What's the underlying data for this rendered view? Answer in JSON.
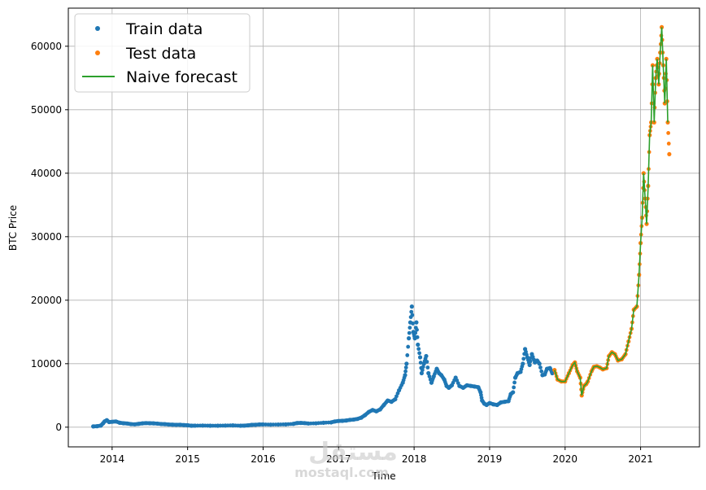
{
  "chart_data": {
    "type": "scatter",
    "xlabel": "Time",
    "ylabel": "BTC Price",
    "xlim": [
      2013.42,
      2021.78
    ],
    "ylim": [
      -3100,
      66000
    ],
    "xticks": [
      2014,
      2015,
      2016,
      2017,
      2018,
      2019,
      2020,
      2021
    ],
    "yticks": [
      0,
      10000,
      20000,
      30000,
      40000,
      50000,
      60000
    ],
    "grid": true,
    "legend_position": "top-left",
    "series": [
      {
        "name": "Train data",
        "kind": "points",
        "color": "#1f77b4",
        "points": [
          [
            2013.75,
            120
          ],
          [
            2013.8,
            150
          ],
          [
            2013.85,
            250
          ],
          [
            2013.88,
            600
          ],
          [
            2013.9,
            900
          ],
          [
            2013.93,
            1100
          ],
          [
            2013.96,
            800
          ],
          [
            2014.0,
            850
          ],
          [
            2014.05,
            900
          ],
          [
            2014.1,
            700
          ],
          [
            2014.15,
            620
          ],
          [
            2014.2,
            580
          ],
          [
            2014.25,
            480
          ],
          [
            2014.3,
            450
          ],
          [
            2014.35,
            520
          ],
          [
            2014.4,
            600
          ],
          [
            2014.45,
            640
          ],
          [
            2014.5,
            620
          ],
          [
            2014.55,
            600
          ],
          [
            2014.6,
            560
          ],
          [
            2014.65,
            500
          ],
          [
            2014.7,
            470
          ],
          [
            2014.75,
            420
          ],
          [
            2014.8,
            390
          ],
          [
            2014.85,
            370
          ],
          [
            2014.9,
            380
          ],
          [
            2014.95,
            330
          ],
          [
            2015.0,
            300
          ],
          [
            2015.05,
            230
          ],
          [
            2015.1,
            240
          ],
          [
            2015.2,
            260
          ],
          [
            2015.3,
            235
          ],
          [
            2015.4,
            230
          ],
          [
            2015.5,
            260
          ],
          [
            2015.6,
            280
          ],
          [
            2015.7,
            235
          ],
          [
            2015.75,
            240
          ],
          [
            2015.8,
            290
          ],
          [
            2015.85,
            360
          ],
          [
            2015.9,
            380
          ],
          [
            2015.95,
            430
          ],
          [
            2016.0,
            430
          ],
          [
            2016.1,
            400
          ],
          [
            2016.2,
            420
          ],
          [
            2016.3,
            440
          ],
          [
            2016.4,
            520
          ],
          [
            2016.45,
            650
          ],
          [
            2016.5,
            670
          ],
          [
            2016.55,
            640
          ],
          [
            2016.6,
            580
          ],
          [
            2016.7,
            610
          ],
          [
            2016.8,
            700
          ],
          [
            2016.9,
            750
          ],
          [
            2016.95,
            900
          ],
          [
            2017.0,
            980
          ],
          [
            2017.05,
            1000
          ],
          [
            2017.1,
            1050
          ],
          [
            2017.15,
            1150
          ],
          [
            2017.2,
            1200
          ],
          [
            2017.25,
            1300
          ],
          [
            2017.3,
            1500
          ],
          [
            2017.35,
            1900
          ],
          [
            2017.4,
            2400
          ],
          [
            2017.45,
            2700
          ],
          [
            2017.5,
            2500
          ],
          [
            2017.55,
            2800
          ],
          [
            2017.6,
            3500
          ],
          [
            2017.65,
            4200
          ],
          [
            2017.7,
            4000
          ],
          [
            2017.75,
            4400
          ],
          [
            2017.8,
            5800
          ],
          [
            2017.85,
            7000
          ],
          [
            2017.88,
            8200
          ],
          [
            2017.9,
            10000
          ],
          [
            2017.93,
            14000
          ],
          [
            2017.95,
            16500
          ],
          [
            2017.97,
            19000
          ],
          [
            2017.99,
            15000
          ],
          [
            2018.01,
            14000
          ],
          [
            2018.03,
            16500
          ],
          [
            2018.05,
            13000
          ],
          [
            2018.08,
            11000
          ],
          [
            2018.1,
            8500
          ],
          [
            2018.13,
            10000
          ],
          [
            2018.16,
            11200
          ],
          [
            2018.19,
            8500
          ],
          [
            2018.23,
            7000
          ],
          [
            2018.26,
            8000
          ],
          [
            2018.3,
            9200
          ],
          [
            2018.33,
            8500
          ],
          [
            2018.36,
            8200
          ],
          [
            2018.4,
            7500
          ],
          [
            2018.43,
            6500
          ],
          [
            2018.46,
            6200
          ],
          [
            2018.5,
            6600
          ],
          [
            2018.55,
            7800
          ],
          [
            2018.6,
            6500
          ],
          [
            2018.65,
            6200
          ],
          [
            2018.7,
            6600
          ],
          [
            2018.75,
            6500
          ],
          [
            2018.8,
            6400
          ],
          [
            2018.85,
            6300
          ],
          [
            2018.88,
            5500
          ],
          [
            2018.9,
            4200
          ],
          [
            2018.93,
            3700
          ],
          [
            2018.96,
            3500
          ],
          [
            2019.0,
            3800
          ],
          [
            2019.05,
            3600
          ],
          [
            2019.1,
            3500
          ],
          [
            2019.15,
            3900
          ],
          [
            2019.2,
            4000
          ],
          [
            2019.25,
            4100
          ],
          [
            2019.28,
            5200
          ],
          [
            2019.31,
            5500
          ],
          [
            2019.34,
            7800
          ],
          [
            2019.37,
            8500
          ],
          [
            2019.41,
            8700
          ],
          [
            2019.44,
            10000
          ],
          [
            2019.47,
            12300
          ],
          [
            2019.5,
            11000
          ],
          [
            2019.53,
            9800
          ],
          [
            2019.56,
            11500
          ],
          [
            2019.6,
            10200
          ],
          [
            2019.63,
            10500
          ],
          [
            2019.66,
            10000
          ],
          [
            2019.7,
            8200
          ],
          [
            2019.73,
            8300
          ],
          [
            2019.76,
            9200
          ],
          [
            2019.8,
            9300
          ],
          [
            2019.83,
            8500
          ]
        ]
      },
      {
        "name": "Test data",
        "kind": "points",
        "color": "#ff7f0e",
        "points": [
          [
            2019.86,
            9000
          ],
          [
            2019.9,
            7500
          ],
          [
            2019.95,
            7200
          ],
          [
            2020.0,
            7200
          ],
          [
            2020.05,
            8500
          ],
          [
            2020.1,
            9800
          ],
          [
            2020.13,
            10200
          ],
          [
            2020.16,
            8800
          ],
          [
            2020.2,
            7800
          ],
          [
            2020.22,
            5000
          ],
          [
            2020.25,
            6500
          ],
          [
            2020.28,
            6800
          ],
          [
            2020.3,
            7200
          ],
          [
            2020.35,
            8800
          ],
          [
            2020.38,
            9500
          ],
          [
            2020.42,
            9600
          ],
          [
            2020.46,
            9400
          ],
          [
            2020.5,
            9100
          ],
          [
            2020.55,
            9300
          ],
          [
            2020.58,
            11200
          ],
          [
            2020.62,
            11800
          ],
          [
            2020.66,
            11500
          ],
          [
            2020.7,
            10500
          ],
          [
            2020.75,
            10700
          ],
          [
            2020.8,
            11500
          ],
          [
            2020.84,
            13500
          ],
          [
            2020.88,
            15500
          ],
          [
            2020.91,
            18500
          ],
          [
            2020.95,
            19000
          ],
          [
            2020.98,
            24000
          ],
          [
            2021.0,
            29000
          ],
          [
            2021.02,
            33000
          ],
          [
            2021.04,
            40000
          ],
          [
            2021.06,
            36000
          ],
          [
            2021.08,
            32000
          ],
          [
            2021.1,
            38000
          ],
          [
            2021.12,
            46000
          ],
          [
            2021.14,
            48000
          ],
          [
            2021.16,
            57000
          ],
          [
            2021.18,
            48000
          ],
          [
            2021.2,
            55000
          ],
          [
            2021.22,
            58000
          ],
          [
            2021.24,
            54000
          ],
          [
            2021.26,
            59000
          ],
          [
            2021.28,
            63000
          ],
          [
            2021.3,
            57000
          ],
          [
            2021.32,
            51000
          ],
          [
            2021.34,
            58000
          ],
          [
            2021.36,
            48000
          ],
          [
            2021.38,
            43000
          ]
        ]
      },
      {
        "name": "Naive forecast",
        "kind": "line",
        "color": "#2ca02c",
        "points": [
          [
            2019.86,
            9000
          ],
          [
            2019.9,
            7500
          ],
          [
            2019.95,
            7200
          ],
          [
            2020.0,
            7200
          ],
          [
            2020.05,
            8500
          ],
          [
            2020.1,
            9800
          ],
          [
            2020.13,
            10200
          ],
          [
            2020.16,
            8800
          ],
          [
            2020.2,
            7800
          ],
          [
            2020.22,
            5000
          ],
          [
            2020.25,
            6500
          ],
          [
            2020.28,
            6800
          ],
          [
            2020.3,
            7200
          ],
          [
            2020.35,
            8800
          ],
          [
            2020.38,
            9500
          ],
          [
            2020.42,
            9600
          ],
          [
            2020.46,
            9400
          ],
          [
            2020.5,
            9100
          ],
          [
            2020.55,
            9300
          ],
          [
            2020.58,
            11200
          ],
          [
            2020.62,
            11800
          ],
          [
            2020.66,
            11500
          ],
          [
            2020.7,
            10500
          ],
          [
            2020.75,
            10700
          ],
          [
            2020.8,
            11500
          ],
          [
            2020.84,
            13500
          ],
          [
            2020.88,
            15500
          ],
          [
            2020.91,
            18500
          ],
          [
            2020.95,
            19000
          ],
          [
            2020.98,
            24000
          ],
          [
            2021.0,
            29000
          ],
          [
            2021.02,
            33000
          ],
          [
            2021.04,
            40000
          ],
          [
            2021.06,
            36000
          ],
          [
            2021.08,
            32000
          ],
          [
            2021.1,
            38000
          ],
          [
            2021.12,
            46000
          ],
          [
            2021.14,
            48000
          ],
          [
            2021.16,
            57000
          ],
          [
            2021.18,
            48000
          ],
          [
            2021.2,
            55000
          ],
          [
            2021.22,
            58000
          ],
          [
            2021.24,
            54000
          ],
          [
            2021.26,
            59000
          ],
          [
            2021.28,
            63000
          ],
          [
            2021.3,
            57000
          ],
          [
            2021.32,
            51000
          ],
          [
            2021.34,
            58000
          ],
          [
            2021.36,
            48000
          ]
        ]
      }
    ]
  },
  "watermark": {
    "text": "mostaql.com"
  }
}
